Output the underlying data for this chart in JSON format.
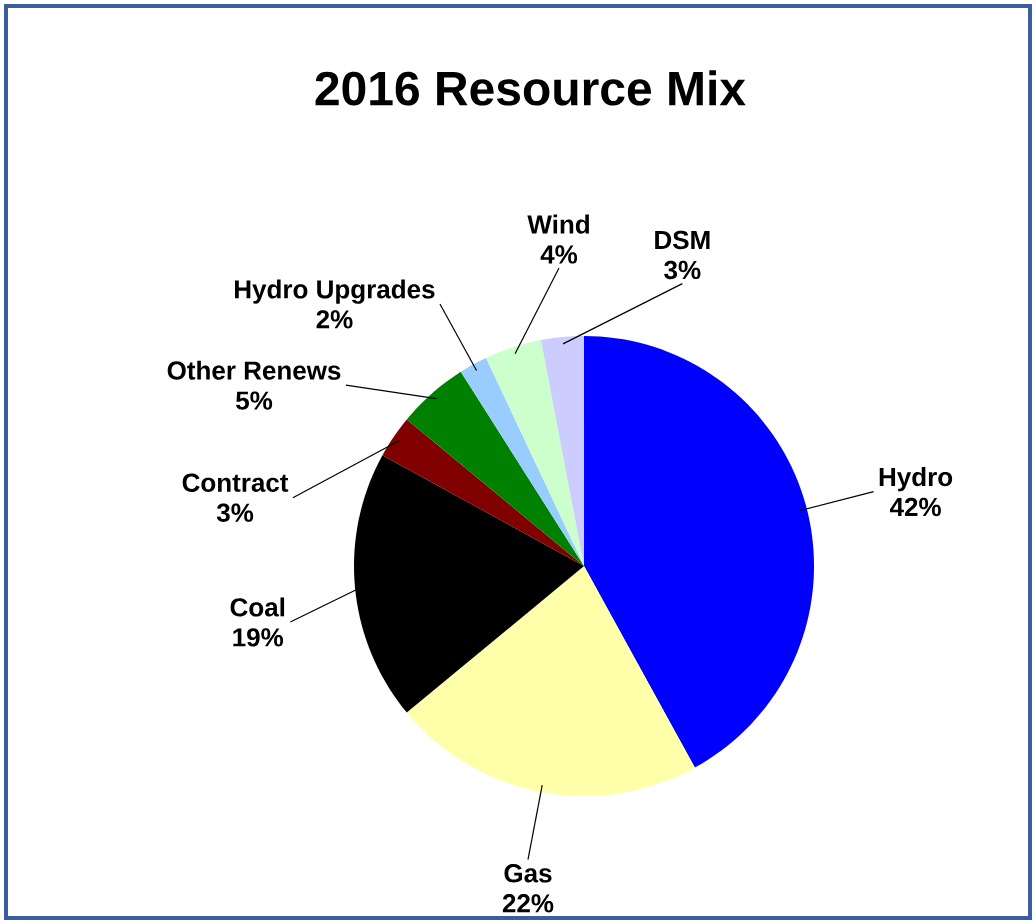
{
  "chart_data": {
    "type": "pie",
    "title": "2016 Resource Mix",
    "categories": [
      "Hydro",
      "Gas",
      "Coal",
      "Contract",
      "Other Renews",
      "Hydro Upgrades",
      "Wind",
      "DSM"
    ],
    "values": [
      42,
      22,
      19,
      3,
      5,
      2,
      4,
      3
    ],
    "value_labels": [
      "42%",
      "22%",
      "19%",
      "3%",
      "5%",
      "2%",
      "4%",
      "3%"
    ],
    "colors": [
      "#0000ff",
      "#ffffaa",
      "#000000",
      "#800000",
      "#008000",
      "#99ccff",
      "#ccffcc",
      "#ccccff"
    ]
  }
}
